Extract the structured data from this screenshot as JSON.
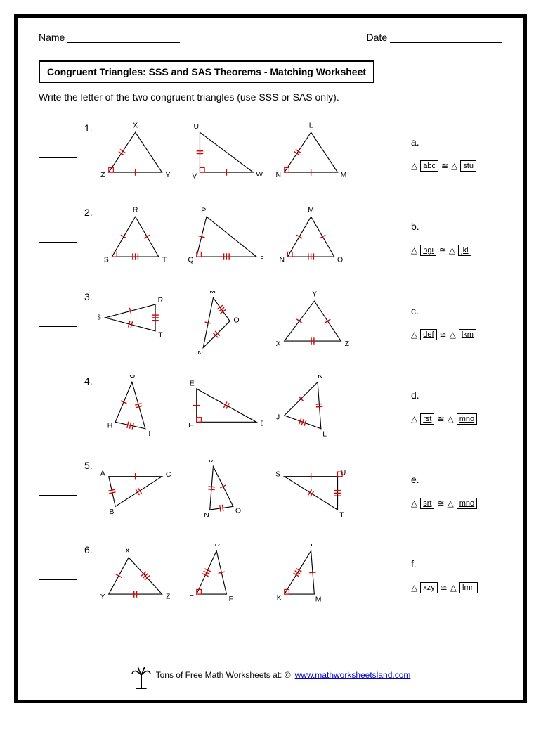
{
  "header": {
    "name_label": "Name",
    "date_label": "Date"
  },
  "title": "Congruent Triangles: SSS and SAS Theorems - Matching Worksheet",
  "instructions": "Write the letter of the two congruent triangles (use SSS or SAS only).",
  "colors": {
    "tick": "#cc0000",
    "line": "#000000",
    "link": "#0000cc"
  },
  "problems": [
    {
      "num": "1.",
      "triangles": [
        {
          "vertices": [
            "X",
            "Z",
            "Y"
          ],
          "points": [
            [
              55,
              15
            ],
            [
              15,
              75
            ],
            [
              95,
              75
            ]
          ],
          "ticks": [
            {
              "side": 0,
              "n": 2
            },
            {
              "side": 1,
              "n": 1
            }
          ],
          "angle": [
            15,
            75
          ]
        },
        {
          "vertices": [
            "U",
            "V",
            "W"
          ],
          "points": [
            [
              20,
              15
            ],
            [
              20,
              75
            ],
            [
              100,
              75
            ]
          ],
          "ticks": [
            {
              "side": 0,
              "n": 2
            },
            {
              "side": 1,
              "n": 1
            }
          ],
          "angle": [
            20,
            75
          ]
        },
        {
          "vertices": [
            "L",
            "N",
            "M"
          ],
          "points": [
            [
              55,
              15
            ],
            [
              15,
              75
            ],
            [
              95,
              75
            ]
          ],
          "ticks": [
            {
              "side": 0,
              "n": 2
            },
            {
              "side": 1,
              "n": 1
            }
          ],
          "angle": [
            15,
            75
          ]
        }
      ]
    },
    {
      "num": "2.",
      "triangles": [
        {
          "vertices": [
            "R",
            "S",
            "T"
          ],
          "points": [
            [
              55,
              15
            ],
            [
              20,
              75
            ],
            [
              90,
              75
            ]
          ],
          "ticks": [
            {
              "side": 0,
              "n": 1
            },
            {
              "side": 1,
              "n": 3
            },
            {
              "side": 2,
              "n": 1
            }
          ],
          "angle": [
            20,
            75
          ]
        },
        {
          "vertices": [
            "P",
            "Q",
            "R"
          ],
          "points": [
            [
              30,
              15
            ],
            [
              15,
              75
            ],
            [
              105,
              75
            ]
          ],
          "ticks": [
            {
              "side": 0,
              "n": 1
            },
            {
              "side": 1,
              "n": 3
            }
          ],
          "angle": [
            15,
            75
          ]
        },
        {
          "vertices": [
            "M",
            "N",
            "O"
          ],
          "points": [
            [
              55,
              15
            ],
            [
              20,
              75
            ],
            [
              90,
              75
            ]
          ],
          "ticks": [
            {
              "side": 0,
              "n": 1
            },
            {
              "side": 1,
              "n": 3
            },
            {
              "side": 2,
              "n": 1
            }
          ],
          "angle": [
            20,
            75
          ]
        }
      ]
    },
    {
      "num": "3.",
      "triangles": [
        {
          "vertices": [
            "R",
            "T",
            "S"
          ],
          "points": [
            [
              85,
              20
            ],
            [
              85,
              60
            ],
            [
              10,
              40
            ]
          ],
          "ticks": [
            {
              "side": 0,
              "n": 3
            },
            {
              "side": 1,
              "n": 2
            },
            {
              "side": 2,
              "n": 1
            }
          ]
        },
        {
          "vertices": [
            "M",
            "O",
            "N"
          ],
          "points": [
            [
              40,
              10
            ],
            [
              65,
              45
            ],
            [
              25,
              85
            ]
          ],
          "ticks": [
            {
              "side": 0,
              "n": 3
            },
            {
              "side": 1,
              "n": 2
            },
            {
              "side": 2,
              "n": 1
            }
          ]
        },
        {
          "vertices": [
            "Y",
            "X",
            "Z"
          ],
          "points": [
            [
              60,
              15
            ],
            [
              15,
              75
            ],
            [
              100,
              75
            ]
          ],
          "ticks": [
            {
              "side": 0,
              "n": 1
            },
            {
              "side": 1,
              "n": 2
            },
            {
              "side": 2,
              "n": 1
            }
          ]
        }
      ]
    },
    {
      "num": "4.",
      "triangles": [
        {
          "vertices": [
            "G",
            "H",
            "I"
          ],
          "points": [
            [
              50,
              10
            ],
            [
              25,
              70
            ],
            [
              70,
              80
            ]
          ],
          "ticks": [
            {
              "side": 0,
              "n": 1
            },
            {
              "side": 1,
              "n": 3
            },
            {
              "side": 2,
              "n": 2
            }
          ]
        },
        {
          "vertices": [
            "E",
            "F",
            "D"
          ],
          "points": [
            [
              15,
              20
            ],
            [
              15,
              70
            ],
            [
              105,
              70
            ]
          ],
          "ticks": [
            {
              "side": 0,
              "n": 1
            },
            {
              "side": 2,
              "n": 2
            }
          ],
          "angle": [
            15,
            70
          ]
        },
        {
          "vertices": [
            "K",
            "J",
            "L"
          ],
          "points": [
            [
              65,
              10
            ],
            [
              15,
              60
            ],
            [
              70,
              80
            ]
          ],
          "ticks": [
            {
              "side": 0,
              "n": 1
            },
            {
              "side": 1,
              "n": 3
            },
            {
              "side": 2,
              "n": 2
            }
          ]
        }
      ]
    },
    {
      "num": "5.",
      "triangles": [
        {
          "vertices": [
            "A",
            "C",
            "B"
          ],
          "points": [
            [
              15,
              25
            ],
            [
              95,
              25
            ],
            [
              25,
              70
            ]
          ],
          "ticks": [
            {
              "side": 0,
              "n": 1
            },
            {
              "side": 1,
              "n": 2
            },
            {
              "side": 2,
              "n": 2
            }
          ]
        },
        {
          "vertices": [
            "M",
            "O",
            "N"
          ],
          "points": [
            [
              40,
              10
            ],
            [
              70,
              70
            ],
            [
              35,
              75
            ]
          ],
          "ticks": [
            {
              "side": 0,
              "n": 1
            },
            {
              "side": 1,
              "n": 2
            },
            {
              "side": 2,
              "n": 2
            }
          ]
        },
        {
          "vertices": [
            "S",
            "U",
            "T"
          ],
          "points": [
            [
              15,
              25
            ],
            [
              95,
              25
            ],
            [
              95,
              75
            ]
          ],
          "ticks": [
            {
              "side": 0,
              "n": 1
            },
            {
              "side": 1,
              "n": 3
            },
            {
              "side": 2,
              "n": 2
            }
          ],
          "angle": [
            95,
            25
          ]
        }
      ]
    },
    {
      "num": "6.",
      "triangles": [
        {
          "vertices": [
            "X",
            "Y",
            "Z"
          ],
          "points": [
            [
              45,
              20
            ],
            [
              15,
              75
            ],
            [
              95,
              75
            ]
          ],
          "ticks": [
            {
              "side": 0,
              "n": 1
            },
            {
              "side": 1,
              "n": 2
            },
            {
              "side": 2,
              "n": 3
            }
          ]
        },
        {
          "vertices": [
            "D",
            "E",
            "F"
          ],
          "points": [
            [
              45,
              10
            ],
            [
              15,
              75
            ],
            [
              60,
              75
            ]
          ],
          "ticks": [
            {
              "side": 0,
              "n": 3
            },
            {
              "side": 2,
              "n": 1
            }
          ],
          "angle": [
            15,
            75
          ]
        },
        {
          "vertices": [
            "L",
            "K",
            "M"
          ],
          "points": [
            [
              55,
              10
            ],
            [
              15,
              75
            ],
            [
              60,
              75
            ]
          ],
          "ticks": [
            {
              "side": 0,
              "n": 3
            },
            {
              "side": 2,
              "n": 1
            }
          ],
          "angle": [
            15,
            75
          ]
        }
      ]
    }
  ],
  "options": [
    {
      "letter": "a.",
      "left": "abc",
      "right": "stu"
    },
    {
      "letter": "b.",
      "left": "hgi",
      "right": "jkl"
    },
    {
      "letter": "c.",
      "left": "def",
      "right": "lkm"
    },
    {
      "letter": "d.",
      "left": "rst",
      "right": "mno"
    },
    {
      "letter": "e.",
      "left": "srt",
      "right": "mno"
    },
    {
      "letter": "f.",
      "left": "xzy",
      "right": "lmn"
    }
  ],
  "footer": {
    "text": "Tons of Free Math Worksheets at: ©",
    "link_text": "www.mathworksheetsland.com"
  }
}
